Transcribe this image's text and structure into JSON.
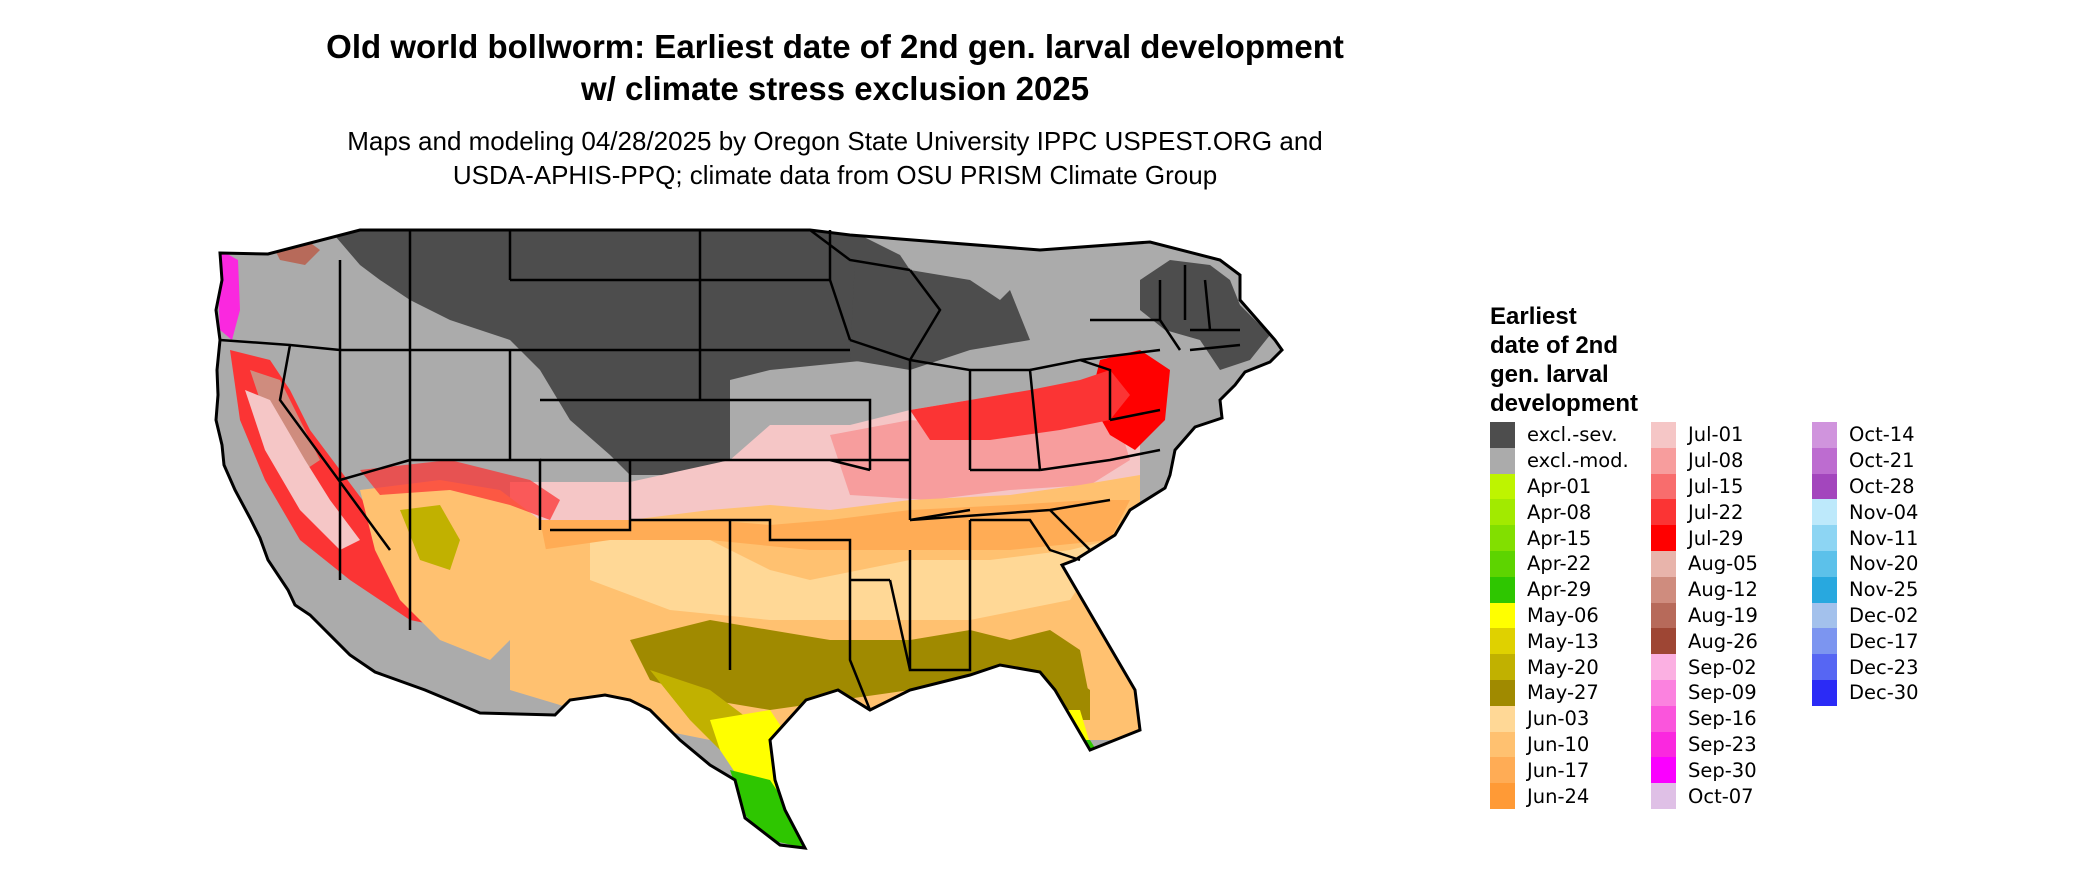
{
  "title": {
    "line1": "Old world bollworm: Earliest date of 2nd gen. larval development",
    "line2": "w/ climate stress exclusion 2025"
  },
  "subtitle": {
    "line1": "Maps and modeling 04/28/2025 by Oregon State University IPPC USPEST.ORG and",
    "line2": "USDA-APHIS-PPQ; climate data from OSU PRISM Climate Group"
  },
  "legend": {
    "title_lines": [
      "Earliest",
      "date of 2nd",
      "gen. larval",
      "development"
    ],
    "columns": [
      [
        {
          "label": "excl.-sev.",
          "color": "#4d4d4d"
        },
        {
          "label": "excl.-mod.",
          "color": "#ababab"
        },
        {
          "label": "Apr-01",
          "color": "#bef400"
        },
        {
          "label": "Apr-08",
          "color": "#a2ea00"
        },
        {
          "label": "Apr-15",
          "color": "#82df00"
        },
        {
          "label": "Apr-22",
          "color": "#5dd400"
        },
        {
          "label": "Apr-29",
          "color": "#2ec600"
        },
        {
          "label": "May-06",
          "color": "#ffff00"
        },
        {
          "label": "May-13",
          "color": "#dfd100"
        },
        {
          "label": "May-20",
          "color": "#c1b100"
        },
        {
          "label": "May-27",
          "color": "#a08a00"
        },
        {
          "label": "Jun-03",
          "color": "#ffd896"
        },
        {
          "label": "Jun-10",
          "color": "#ffc170"
        },
        {
          "label": "Jun-17",
          "color": "#ffac55"
        },
        {
          "label": "Jun-24",
          "color": "#ff9a36"
        }
      ],
      [
        {
          "label": "Jul-01",
          "color": "#f5c6c6"
        },
        {
          "label": "Jul-08",
          "color": "#f79d9d"
        },
        {
          "label": "Jul-15",
          "color": "#f86d6d"
        },
        {
          "label": "Jul-22",
          "color": "#fb3434"
        },
        {
          "label": "Jul-29",
          "color": "#ff0000"
        },
        {
          "label": "Aug-05",
          "color": "#e8b4ab"
        },
        {
          "label": "Aug-12",
          "color": "#cf8c7e"
        },
        {
          "label": "Aug-19",
          "color": "#b76a5a"
        },
        {
          "label": "Aug-26",
          "color": "#9e4634"
        },
        {
          "label": "Sep-02",
          "color": "#fbb0e2"
        },
        {
          "label": "Sep-09",
          "color": "#fb82df"
        },
        {
          "label": "Sep-16",
          "color": "#fa55dc"
        },
        {
          "label": "Sep-23",
          "color": "#fa28df"
        },
        {
          "label": "Sep-30",
          "color": "#fa00ff"
        },
        {
          "label": "Oct-07",
          "color": "#dfc0e6"
        }
      ],
      [
        {
          "label": "Oct-14",
          "color": "#d094dd"
        },
        {
          "label": "Oct-21",
          "color": "#bd6cd0"
        },
        {
          "label": "Oct-28",
          "color": "#a346bd"
        },
        {
          "label": "Nov-04",
          "color": "#bde9fb"
        },
        {
          "label": "Nov-11",
          "color": "#8dd5f3"
        },
        {
          "label": "Nov-20",
          "color": "#5cc1ea"
        },
        {
          "label": "Nov-25",
          "color": "#28a8df"
        },
        {
          "label": "Dec-02",
          "color": "#a3c1ec"
        },
        {
          "label": "Dec-17",
          "color": "#7c95f0"
        },
        {
          "label": "Dec-23",
          "color": "#5666f3"
        },
        {
          "label": "Dec-30",
          "color": "#2b2bf6"
        }
      ]
    ]
  }
}
